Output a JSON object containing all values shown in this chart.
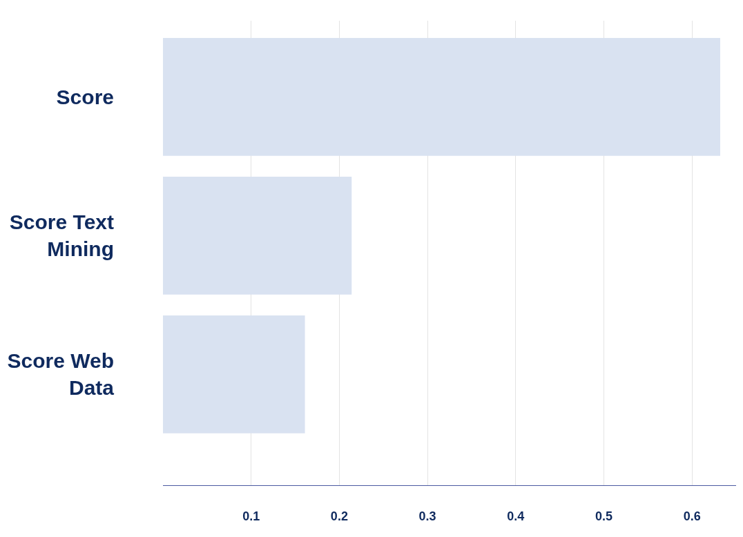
{
  "chart_data": {
    "type": "bar",
    "orientation": "horizontal",
    "categories": [
      "Score",
      "Score Text Mining",
      "Score Web Data"
    ],
    "values": [
      0.632,
      0.214,
      0.161
    ],
    "color": "#d9e2f1",
    "xlim": [
      0,
      0.65
    ],
    "xticks": [
      0.1,
      0.2,
      0.3,
      0.4,
      0.5,
      0.6
    ],
    "grid": "x",
    "legend": false
  }
}
